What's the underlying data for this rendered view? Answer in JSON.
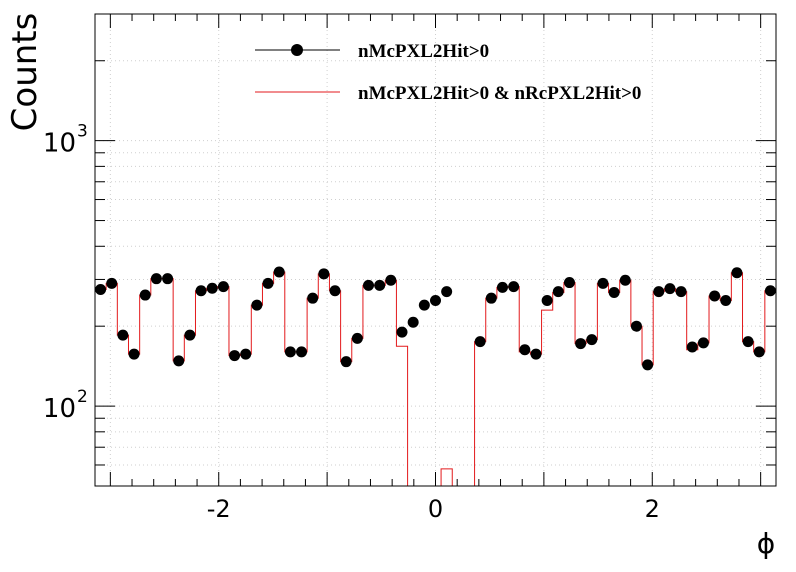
{
  "chart_data": {
    "type": "line",
    "ylabel": "Counts",
    "xlabel": "ϕ",
    "y_scale": "log",
    "xlim": [
      -3.1416,
      3.1416
    ],
    "ylim": [
      50,
      3000
    ],
    "grid": true,
    "legend_position": "top-center",
    "x_ticks": [
      {
        "value": -2,
        "label": "-2"
      },
      {
        "value": 0,
        "label": "0"
      },
      {
        "value": 2,
        "label": "2"
      }
    ],
    "y_ticks": [
      {
        "value": 100,
        "base": "10",
        "exp": "2"
      },
      {
        "value": 1000,
        "base": "10",
        "exp": "3"
      }
    ],
    "series": [
      {
        "name": "nMcPXL2Hit>0",
        "style": "markers",
        "color": "#000000",
        "values": [
          275,
          290,
          185,
          157,
          262,
          302,
          302,
          148,
          185,
          272,
          278,
          282,
          155,
          157,
          240,
          290,
          320,
          160,
          160,
          255,
          315,
          272,
          147,
          180,
          285,
          285,
          298,
          190,
          207,
          240,
          250,
          270,
          0,
          0,
          175,
          255,
          280,
          282,
          163,
          157,
          250,
          270,
          292,
          172,
          178,
          290,
          268,
          298,
          200,
          143,
          270,
          277,
          270,
          167,
          173,
          260,
          250,
          318,
          175,
          160,
          272
        ]
      },
      {
        "name": "nMcPXL2Hit>0 & nRcPXL2Hit>0",
        "style": "step",
        "color": "#e31a1c",
        "values": [
          275,
          290,
          185,
          157,
          262,
          302,
          302,
          148,
          185,
          272,
          278,
          282,
          155,
          157,
          240,
          290,
          320,
          160,
          160,
          255,
          315,
          272,
          147,
          180,
          285,
          285,
          298,
          168,
          0,
          0,
          0,
          58,
          0,
          0,
          175,
          255,
          280,
          282,
          160,
          157,
          230,
          268,
          292,
          172,
          178,
          290,
          268,
          298,
          200,
          143,
          270,
          277,
          270,
          163,
          173,
          260,
          250,
          318,
          175,
          160,
          272
        ]
      }
    ]
  }
}
